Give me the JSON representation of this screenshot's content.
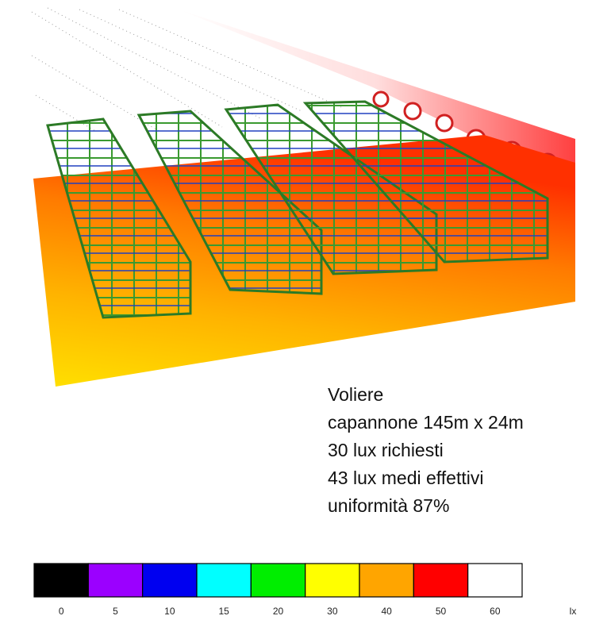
{
  "caption": [
    "Voliere",
    "capannone 145m x 24m",
    "30 lux richiesti",
    "43 lux medi effettivi",
    "uniformità 87%"
  ],
  "legend": {
    "items": [
      {
        "label": 0,
        "color": "#000000"
      },
      {
        "label": 5,
        "color": "#9b00ff"
      },
      {
        "label": 10,
        "color": "#0000f0"
      },
      {
        "label": 15,
        "color": "#00ffff"
      },
      {
        "label": 20,
        "color": "#00ee00"
      },
      {
        "label": 30,
        "color": "#ffff00"
      },
      {
        "label": 40,
        "color": "#ffa500"
      },
      {
        "label": 50,
        "color": "#ff0000"
      },
      {
        "label": 60,
        "color": "#ffffff"
      }
    ],
    "unit": "lx"
  }
}
